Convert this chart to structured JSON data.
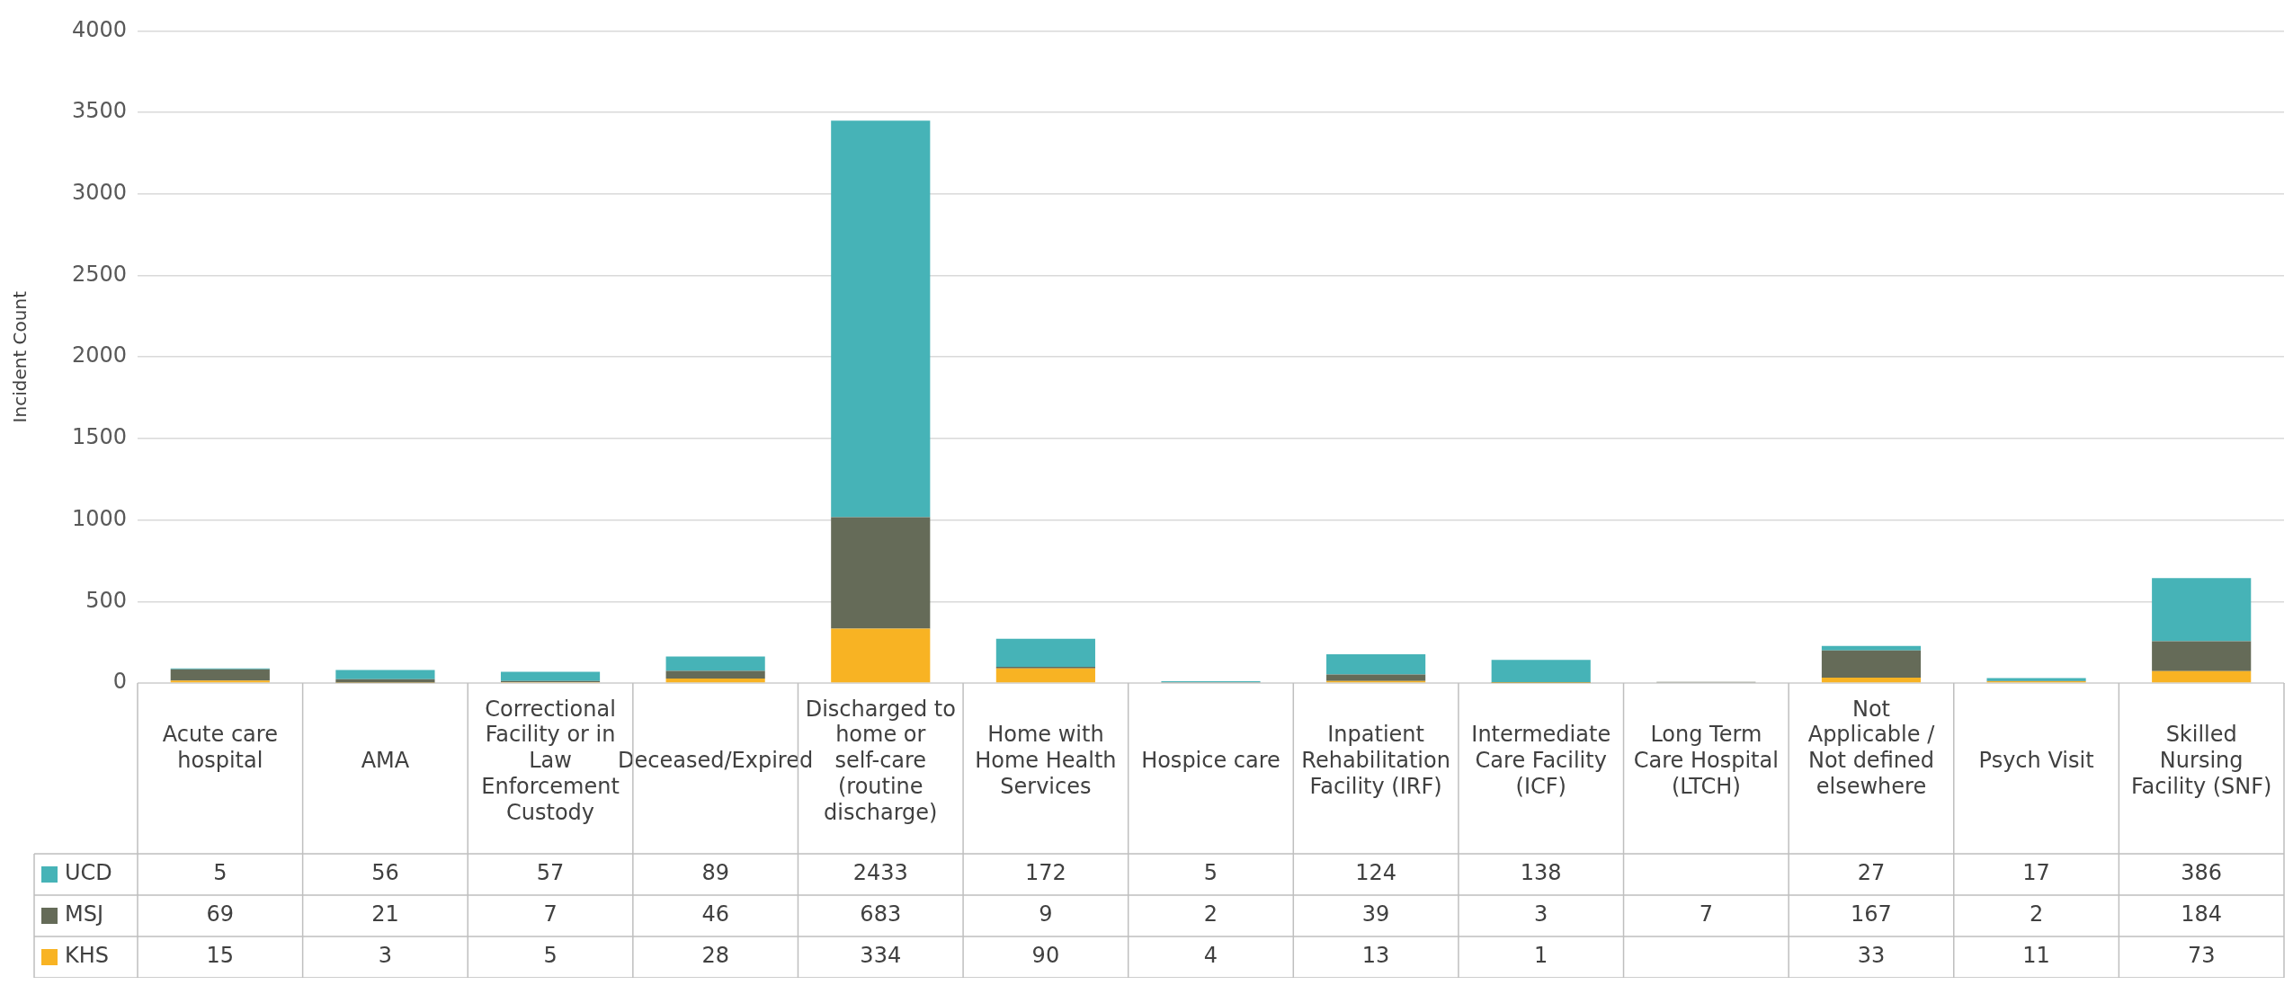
{
  "chart_data": {
    "type": "bar",
    "stacked": true,
    "ylabel": "Incident Count",
    "categories": [
      "Acute care hospital",
      "AMA",
      "Correctional Facility or in Law Enforcement Custody",
      "Deceased/Expired",
      "Discharged to home or self-care (routine discharge)",
      "Home with Home Health Services",
      "Hospice care",
      "Inpatient Rehabilitation Facility (IRF)",
      "Intermediate Care Facility (ICF)",
      "Long Term Care Hospital (LTCH)",
      "Not Applicable / Not defined elsewhere",
      "Psych Visit",
      "Skilled Nursing Facility (SNF)"
    ],
    "series": [
      {
        "name": "KHS",
        "color": "#f8b323",
        "values": [
          15,
          3,
          5,
          28,
          334,
          90,
          4,
          13,
          1,
          null,
          33,
          11,
          73
        ]
      },
      {
        "name": "MSJ",
        "color": "#656b58",
        "values": [
          69,
          21,
          7,
          46,
          683,
          9,
          2,
          39,
          3,
          7,
          167,
          2,
          184
        ]
      },
      {
        "name": "UCD",
        "color": "#46b3b7",
        "values": [
          5,
          56,
          57,
          89,
          2433,
          172,
          5,
          124,
          138,
          null,
          27,
          17,
          386
        ]
      }
    ],
    "ylim": [
      0,
      4000
    ],
    "yticks": [
      0,
      500,
      1000,
      1500,
      2000,
      2500,
      3000,
      3500,
      4000
    ],
    "grid": "y",
    "legend": "bottom left",
    "data_labels": true
  }
}
